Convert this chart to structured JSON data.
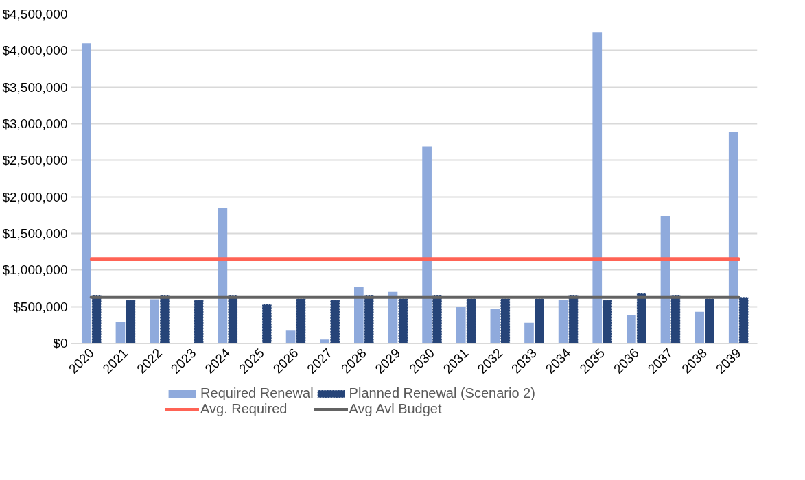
{
  "chart_data": {
    "type": "bar",
    "categories": [
      "2020",
      "2021",
      "2022",
      "2023",
      "2024",
      "2025",
      "2026",
      "2027",
      "2028",
      "2029",
      "2030",
      "2031",
      "2032",
      "2033",
      "2034",
      "2035",
      "2036",
      "2037",
      "2038",
      "2039"
    ],
    "series": [
      {
        "name": "Required Renewal",
        "color": "#8faadc",
        "values": [
          4100000,
          290000,
          600000,
          0,
          1850000,
          0,
          180000,
          50000,
          770000,
          700000,
          2690000,
          500000,
          470000,
          280000,
          590000,
          4250000,
          390000,
          1740000,
          430000,
          2890000
        ]
      },
      {
        "name": "Planned Renewal (Scenario 2)",
        "color": "#264478",
        "values": [
          660000,
          590000,
          660000,
          590000,
          660000,
          530000,
          610000,
          590000,
          660000,
          610000,
          660000,
          610000,
          610000,
          610000,
          660000,
          590000,
          680000,
          660000,
          610000,
          630000
        ]
      },
      {
        "name": "Avg. Required",
        "type": "line",
        "color": "#ff6355",
        "values": [
          1150000,
          1150000,
          1150000,
          1150000,
          1150000,
          1150000,
          1150000,
          1150000,
          1150000,
          1150000,
          1150000,
          1150000,
          1150000,
          1150000,
          1150000,
          1150000,
          1150000,
          1150000,
          1150000,
          1150000
        ]
      },
      {
        "name": "Avg Avl Budget",
        "type": "line",
        "color": "#636363",
        "values": [
          630000,
          630000,
          630000,
          630000,
          630000,
          630000,
          630000,
          630000,
          630000,
          630000,
          630000,
          630000,
          630000,
          630000,
          630000,
          630000,
          630000,
          630000,
          630000,
          630000
        ]
      }
    ],
    "ylim": [
      0,
      4500000
    ],
    "yticks": [
      {
        "value": 0,
        "label": "$0"
      },
      {
        "value": 500000,
        "label": "$500,000"
      },
      {
        "value": 1000000,
        "label": "$1,000,000"
      },
      {
        "value": 1500000,
        "label": "$1,500,000"
      },
      {
        "value": 2000000,
        "label": "$2,000,000"
      },
      {
        "value": 2500000,
        "label": "$2,500,000"
      },
      {
        "value": 3000000,
        "label": "$3,000,000"
      },
      {
        "value": 3500000,
        "label": "$3,500,000"
      },
      {
        "value": 4000000,
        "label": "$4,000,000"
      },
      {
        "value": 4500000,
        "label": "$4,500,000"
      }
    ],
    "grid": "y",
    "legend": "bottom"
  }
}
